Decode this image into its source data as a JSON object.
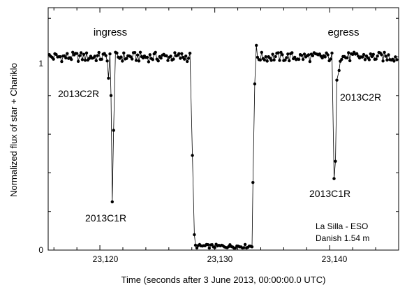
{
  "chart_data": {
    "type": "line",
    "xlabel": "Time (seconds after 3 June 2013, 00:00:00.0 UTC)",
    "ylabel": "Normalized flux of star + Chariklo",
    "xlim": [
      23115.5,
      23146
    ],
    "ylim": [
      0,
      1.255
    ],
    "x_ticks": [
      23120,
      23130,
      23140
    ],
    "x_tick_labels": [
      "23,120",
      "23,130",
      "23,140"
    ],
    "y_ticks": [
      0,
      1
    ],
    "y_tick_labels": [
      "0",
      "1"
    ],
    "grid": false,
    "legend": "none",
    "series": [
      {
        "marker": "dot",
        "color": "#000000"
      }
    ],
    "baseline_flux": 1.0,
    "bottom_flux": 0.02,
    "ring_dips": [
      {
        "x": 23120.75,
        "y": 0.89
      },
      {
        "x": 23120.97,
        "y": 0.8
      },
      {
        "x": 23121.08,
        "y": 0.25
      },
      {
        "x": 23121.19,
        "y": 0.62
      },
      {
        "x": 23128.05,
        "y": 0.49
      },
      {
        "x": 23128.22,
        "y": 0.08
      },
      {
        "x": 23133.32,
        "y": 0.35
      },
      {
        "x": 23133.48,
        "y": 0.86
      },
      {
        "x": 23133.62,
        "y": 1.06
      },
      {
        "x": 23140.38,
        "y": 0.37
      },
      {
        "x": 23140.5,
        "y": 0.46
      },
      {
        "x": 23140.62,
        "y": 0.88
      },
      {
        "x": 23140.82,
        "y": 0.93
      }
    ],
    "annotations": {
      "ingress": "ingress",
      "egress": "egress",
      "c2r_left": "2013C2R",
      "c1r_left": "2013C1R",
      "c2r_right": "2013C2R",
      "c1r_right": "2013C1R",
      "site_line1": "La Silla - ESO",
      "site_line2": "Danish 1.54 m"
    }
  }
}
